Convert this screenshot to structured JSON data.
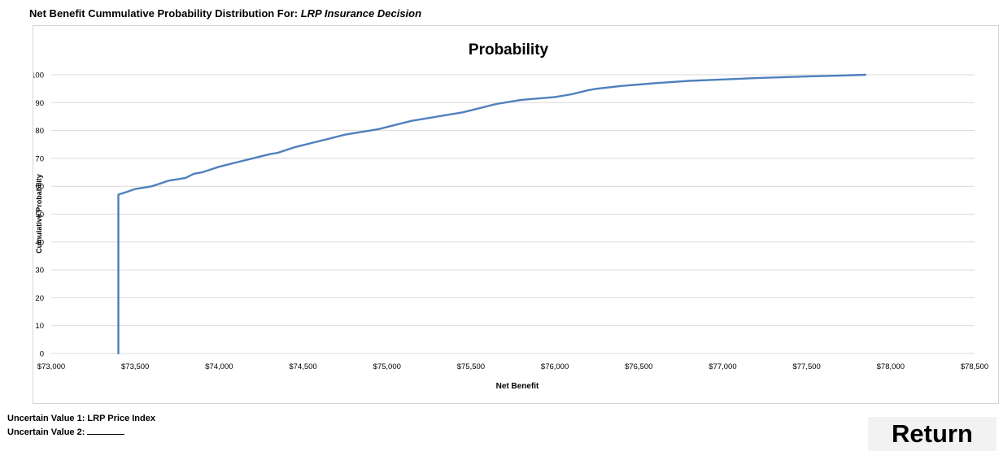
{
  "header": {
    "prefix": "Net Benefit Cummulative Probability Distribution For:",
    "decision": "LRP Insurance Decision"
  },
  "footer": {
    "uncertain_value_1": "Uncertain Value 1: LRP Price Index",
    "uncertain_value_2_label": "Uncertain Value 2:"
  },
  "buttons": {
    "return_label": "Return"
  },
  "colors": {
    "line": "#4f81bd",
    "grid": "#d9d9d9",
    "frame": "#d4d4d4",
    "button_bg": "#f2f2f2"
  },
  "chart_data": {
    "type": "line",
    "title": "Probability",
    "xlabel": "Net Benefit",
    "ylabel": "Cumulative Probability",
    "xlim": [
      73000,
      78500
    ],
    "ylim": [
      0,
      100
    ],
    "x_ticks": [
      73000,
      73500,
      74000,
      74500,
      75000,
      75500,
      76000,
      76500,
      77000,
      77500,
      78000,
      78500
    ],
    "x_tick_labels": [
      "$73,000",
      "$73,500",
      "$74,000",
      "$74,500",
      "$75,000",
      "$75,500",
      "$76,000",
      "$76,500",
      "$77,000",
      "$77,500",
      "$78,000",
      "$78,500"
    ],
    "y_ticks": [
      0,
      10,
      20,
      30,
      40,
      50,
      60,
      70,
      80,
      90,
      100
    ],
    "grid": "horizontal",
    "series": [
      {
        "x": [
          73400,
          73400,
          73450,
          73500,
          73550,
          73600,
          73650,
          73700,
          73800,
          73850,
          73900,
          73950,
          74000,
          74100,
          74200,
          74300,
          74350,
          74450,
          74550,
          74650,
          74750,
          74850,
          74950,
          75050,
          75150,
          75250,
          75350,
          75450,
          75550,
          75650,
          75700,
          75800,
          75900,
          76000,
          76100,
          76200,
          76250,
          76400,
          76500,
          76600,
          76800,
          77000,
          77200,
          77500,
          77700,
          77850
        ],
        "y": [
          0,
          57,
          58,
          59,
          59.5,
          60,
          61,
          62,
          63,
          64.5,
          65,
          66,
          67,
          68.5,
          70,
          71.5,
          72,
          74,
          75.5,
          77,
          78.5,
          79.5,
          80.5,
          82,
          83.5,
          84.5,
          85.5,
          86.5,
          88,
          89.5,
          90,
          91,
          91.5,
          92,
          93,
          94.5,
          95,
          96,
          96.5,
          97,
          97.8,
          98.3,
          98.8,
          99.4,
          99.7,
          100
        ]
      }
    ]
  }
}
